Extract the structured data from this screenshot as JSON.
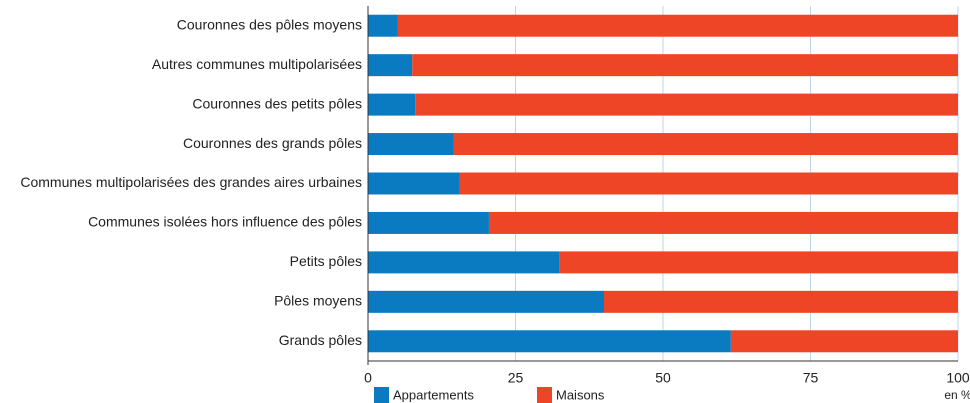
{
  "chart_data": {
    "type": "stacked-bar-horizontal",
    "categories": [
      "Couronnes des pôles moyens",
      "Autres communes multipolarisées",
      "Couronnes des petits pôles",
      "Couronnes des grands pôles",
      "Communes multipolarisées des grandes aires urbaines",
      "Communes isolées hors influence des pôles",
      "Petits pôles",
      "Pôles moyens",
      "Grands pôles"
    ],
    "series": [
      {
        "name": "Appartements",
        "color": "#0a7bc1",
        "values": [
          5,
          7.5,
          8,
          14.5,
          15.5,
          20.5,
          32.5,
          40,
          61.5
        ]
      },
      {
        "name": "Maisons",
        "color": "#ee4527",
        "values": [
          95,
          92.5,
          92,
          85.5,
          84.5,
          79.5,
          67.5,
          60,
          38.5
        ]
      }
    ],
    "xlim": [
      0,
      100
    ],
    "xticks": [
      0,
      25,
      50,
      75,
      100
    ],
    "x_label": "en %",
    "grid": true
  }
}
